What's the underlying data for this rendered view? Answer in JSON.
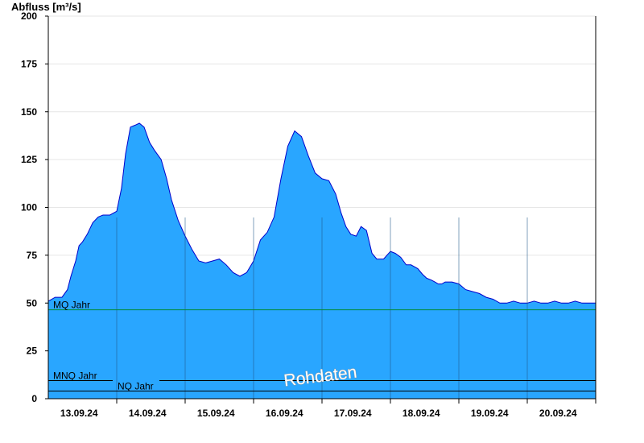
{
  "colors": {
    "area_fill": "#29a6ff",
    "area_line": "#0000cc",
    "mq_line": "#008a3a",
    "ref_line": "#000000",
    "grid": "#e6e6e6",
    "axis": "#000000",
    "day_line": "#1f5a8a"
  },
  "chart_data": {
    "type": "area",
    "title": "",
    "xlabel": "",
    "ylabel": "Abfluss [m³/s]",
    "ylim": [
      0,
      200
    ],
    "yticks": [
      0,
      25,
      50,
      75,
      100,
      125,
      150,
      175,
      200
    ],
    "grid": true,
    "x_range_days": [
      12.55,
      20.55
    ],
    "x_day_ticks": [
      {
        "day": 13,
        "label": "13.09.24"
      },
      {
        "day": 14,
        "label": "14.09.24"
      },
      {
        "day": 15,
        "label": "15.09.24"
      },
      {
        "day": 16,
        "label": "16.09.24"
      },
      {
        "day": 17,
        "label": "17.09.24"
      },
      {
        "day": 18,
        "label": "18.09.24"
      },
      {
        "day": 19,
        "label": "19.09.24"
      },
      {
        "day": 20,
        "label": "20.09.24"
      }
    ],
    "x_boundaries": [
      13.55,
      14.55,
      15.55,
      16.55,
      17.55,
      18.55,
      19.55,
      20.55
    ],
    "series": [
      {
        "x": [
          12.55,
          12.65,
          12.75,
          12.83,
          12.88,
          12.95,
          13.0,
          13.05,
          13.12,
          13.2,
          13.28,
          13.35,
          13.45,
          13.55,
          13.62,
          13.68,
          13.75,
          13.82,
          13.88,
          13.95,
          14.03,
          14.1,
          14.2,
          14.28,
          14.35,
          14.45,
          14.55,
          14.65,
          14.75,
          14.85,
          14.95,
          15.05,
          15.15,
          15.25,
          15.35,
          15.45,
          15.55,
          15.65,
          15.75,
          15.85,
          15.95,
          16.05,
          16.15,
          16.25,
          16.35,
          16.45,
          16.55,
          16.65,
          16.75,
          16.83,
          16.9,
          16.97,
          17.05,
          17.12,
          17.2,
          17.28,
          17.35,
          17.45,
          17.55,
          17.62,
          17.7,
          17.78,
          17.85,
          17.95,
          18.02,
          18.08,
          18.15,
          18.2,
          18.25,
          18.3,
          18.35,
          18.45,
          18.55,
          18.65,
          18.75,
          18.85,
          18.95,
          19.05,
          19.15,
          19.25,
          19.35,
          19.45,
          19.55,
          19.65,
          19.75,
          19.85,
          19.95,
          20.05,
          20.15,
          20.25,
          20.35,
          20.45,
          20.5,
          20.55
        ],
        "y": [
          51,
          53,
          53,
          57,
          64,
          72,
          80,
          82,
          86,
          92,
          95,
          96,
          96,
          98,
          110,
          128,
          142,
          143,
          144,
          142,
          134,
          130,
          125,
          115,
          104,
          93,
          85,
          78,
          72,
          71,
          72,
          73,
          70,
          66,
          64,
          66,
          72,
          83,
          87,
          95,
          115,
          132,
          140,
          137,
          127,
          118,
          115,
          114,
          107,
          97,
          90,
          86,
          85,
          90,
          88,
          76,
          73,
          73,
          77,
          76,
          74,
          70,
          70,
          68,
          65,
          63,
          62,
          61,
          60,
          60,
          61,
          61,
          60,
          57,
          56,
          55,
          53,
          52,
          50,
          50,
          51,
          50,
          50,
          51,
          50,
          50,
          51,
          50,
          50,
          51,
          50,
          50,
          50,
          50
        ]
      }
    ],
    "reference_lines": [
      {
        "name": "MQ Jahr",
        "value": 46.5
      },
      {
        "name": "MNQ Jahr",
        "value": 9.5
      },
      {
        "name": "NQ Jahr",
        "value": 4
      }
    ],
    "watermark": "Rohdaten"
  }
}
